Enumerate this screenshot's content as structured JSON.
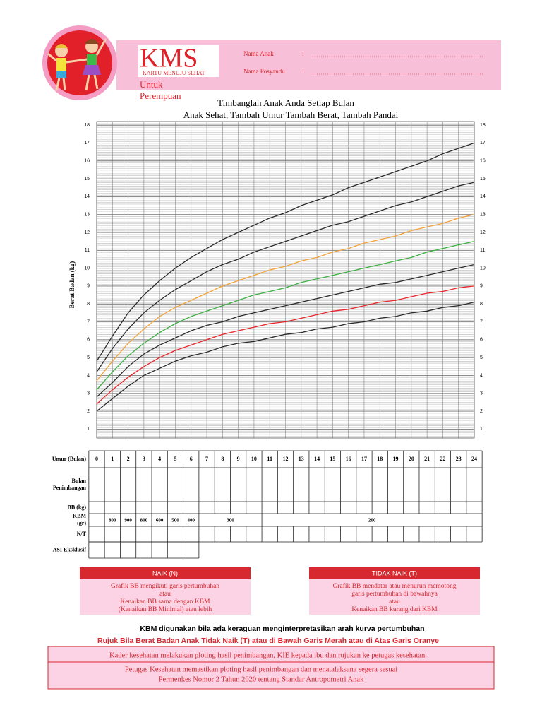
{
  "header": {
    "logo": "KMS",
    "logo_subtitle": "KARTU MENUJU SEHAT",
    "audience_lines": [
      "Untuk",
      "Perempuan"
    ],
    "fields": [
      {
        "label": "Nama Anak",
        "separator": ":"
      },
      {
        "label": "Nama Posyandu",
        "separator": ":"
      }
    ]
  },
  "growth_chart": {
    "title_lines": [
      "Timbanglah Anak Anda Setiap Bulan",
      "Anak Sehat, Tambah Umur Tambah Berat, Tambah Pandai"
    ],
    "y_label": "Berat Badan (kg)",
    "ylim": [
      0.5,
      18.2
    ],
    "yticks": [
      1,
      2,
      3,
      4,
      5,
      6,
      7,
      8,
      9,
      10,
      11,
      12,
      13,
      14,
      15,
      16,
      17,
      18
    ],
    "xlim": [
      0,
      24
    ],
    "x": [
      0,
      1,
      2,
      3,
      4,
      5,
      6,
      7,
      8,
      9,
      10,
      11,
      12,
      13,
      14,
      15,
      16,
      17,
      18,
      19,
      20,
      21,
      22,
      23,
      24
    ],
    "curves": [
      {
        "color": "#2b2b2b",
        "values": [
          4.8,
          6.2,
          7.5,
          8.5,
          9.3,
          10.0,
          10.6,
          11.1,
          11.6,
          12.0,
          12.4,
          12.8,
          13.1,
          13.5,
          13.8,
          14.1,
          14.5,
          14.8,
          15.1,
          15.4,
          15.7,
          16.0,
          16.4,
          16.7,
          17.0
        ]
      },
      {
        "color": "#2b2b2b",
        "values": [
          4.2,
          5.5,
          6.6,
          7.5,
          8.2,
          8.8,
          9.3,
          9.8,
          10.2,
          10.5,
          10.9,
          11.2,
          11.5,
          11.8,
          12.1,
          12.4,
          12.6,
          12.9,
          13.2,
          13.5,
          13.7,
          14.0,
          14.3,
          14.6,
          14.8
        ]
      },
      {
        "color": "#f2a33a",
        "values": [
          3.7,
          4.8,
          5.8,
          6.6,
          7.3,
          7.8,
          8.2,
          8.6,
          9.0,
          9.3,
          9.6,
          9.9,
          10.1,
          10.4,
          10.6,
          10.9,
          11.1,
          11.4,
          11.6,
          11.8,
          12.1,
          12.3,
          12.5,
          12.8,
          13.0
        ]
      },
      {
        "color": "#3cb043",
        "values": [
          3.2,
          4.2,
          5.1,
          5.8,
          6.4,
          6.9,
          7.3,
          7.6,
          7.9,
          8.2,
          8.5,
          8.7,
          8.9,
          9.2,
          9.4,
          9.6,
          9.8,
          10.0,
          10.2,
          10.4,
          10.6,
          10.9,
          11.1,
          11.3,
          11.5
        ]
      },
      {
        "color": "#2b2b2b",
        "values": [
          2.8,
          3.6,
          4.5,
          5.2,
          5.7,
          6.1,
          6.5,
          6.8,
          7.0,
          7.3,
          7.5,
          7.7,
          7.9,
          8.1,
          8.3,
          8.5,
          8.7,
          8.9,
          9.1,
          9.2,
          9.4,
          9.6,
          9.8,
          10.0,
          10.2
        ]
      },
      {
        "color": "#e8262b",
        "values": [
          2.4,
          3.2,
          3.9,
          4.5,
          5.0,
          5.4,
          5.7,
          6.0,
          6.3,
          6.5,
          6.7,
          6.9,
          7.0,
          7.2,
          7.4,
          7.6,
          7.7,
          7.9,
          8.1,
          8.2,
          8.4,
          8.6,
          8.7,
          8.9,
          9.0
        ]
      },
      {
        "color": "#2b2b2b",
        "values": [
          2.0,
          2.7,
          3.4,
          4.0,
          4.4,
          4.8,
          5.1,
          5.3,
          5.6,
          5.8,
          5.9,
          6.1,
          6.3,
          6.4,
          6.6,
          6.7,
          6.9,
          7.0,
          7.2,
          7.3,
          7.5,
          7.6,
          7.8,
          7.9,
          8.1
        ]
      }
    ]
  },
  "table": {
    "row_labels": [
      [
        "Umur (Bulan)"
      ],
      [
        "Bulan",
        "Penimbangan"
      ],
      [
        "BB (kg)"
      ],
      [
        "KBM",
        "(gr)"
      ],
      [
        "N/T"
      ],
      [
        "ASI Eksklusif"
      ]
    ],
    "kbm": [
      null,
      800,
      900,
      800,
      600,
      500,
      400,
      300,
      null,
      null,
      null,
      200,
      null,
      null,
      null,
      null,
      null,
      null,
      null,
      null,
      null,
      null,
      null,
      null,
      null
    ]
  },
  "legend_boxes": [
    {
      "title": "NAIK (N)",
      "lines": [
        "Grafik BB mengikuti garis pertumbuhan",
        "atau",
        "Kenaikan BB sama dengan KBM",
        "(Kenaikan BB Minimal) atau lebih"
      ]
    },
    {
      "title": "TIDAK NAIK (T)",
      "lines": [
        "Grafik BB mendatar atau menurun memotong",
        "garis pertumbuhan di bawahnya",
        "atau",
        "Kenaikan BB kurang dari KBM"
      ]
    }
  ],
  "notes": {
    "kbm_note": "KBM digunakan bila ada keraguan menginterpretasikan arah kurva pertumbuhan",
    "referral": "Rujuk Bila Berat Badan Anak Tidak Naik (T) atau di Bawah Garis Merah atau di Atas Garis Oranye",
    "cadre": "Kader kesehatan melakukan ploting hasil penimbangan, KIE kepada ibu dan rujukan ke petugas kesehatan.",
    "officer_lines": [
      "Petugas Kesehatan memastikan ploting hasil penimbangan dan menatalaksana segera sesuai",
      "Permenkes Nomor 2 Tahun 2020 tentang Standar Antropometri Anak"
    ]
  }
}
